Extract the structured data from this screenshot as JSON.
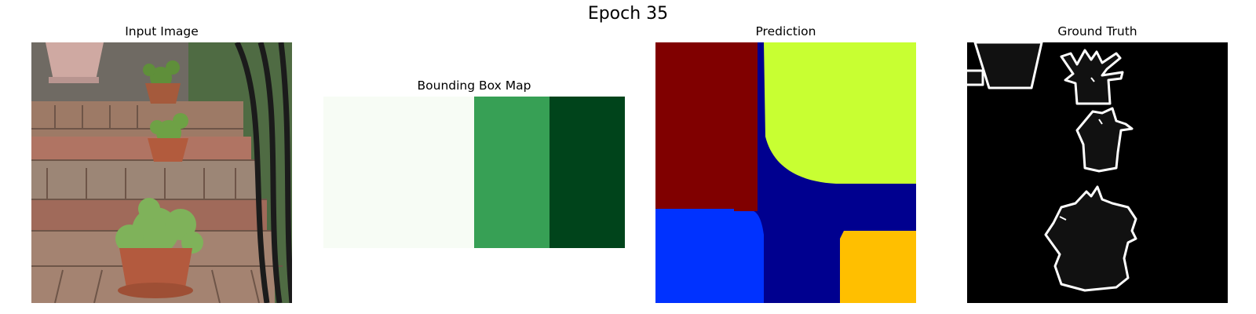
{
  "figure": {
    "title": "Epoch 35",
    "panels": [
      {
        "title": "Input Image",
        "content": "photo of potted plants on brick steps beside a black iron railing"
      },
      {
        "title": "Bounding Box Map",
        "colormap": "Greens",
        "column_intensity": [
          0.05,
          0.6,
          0.95
        ]
      },
      {
        "title": "Prediction",
        "colormap": "jet",
        "colors": [
          "#800000",
          "#c8ff32",
          "#0032ff",
          "#00008f",
          "#ffbf00"
        ]
      },
      {
        "title": "Ground Truth",
        "content": "white contour outlines of pots and plants on black background"
      }
    ]
  },
  "colors": {
    "bbox_light": "#f7fcf5",
    "bbox_mid": "#37a055",
    "bbox_dark": "#00441b",
    "gt_background": "#000000",
    "gt_fill": "#111111",
    "gt_outline": "#ffffff"
  }
}
